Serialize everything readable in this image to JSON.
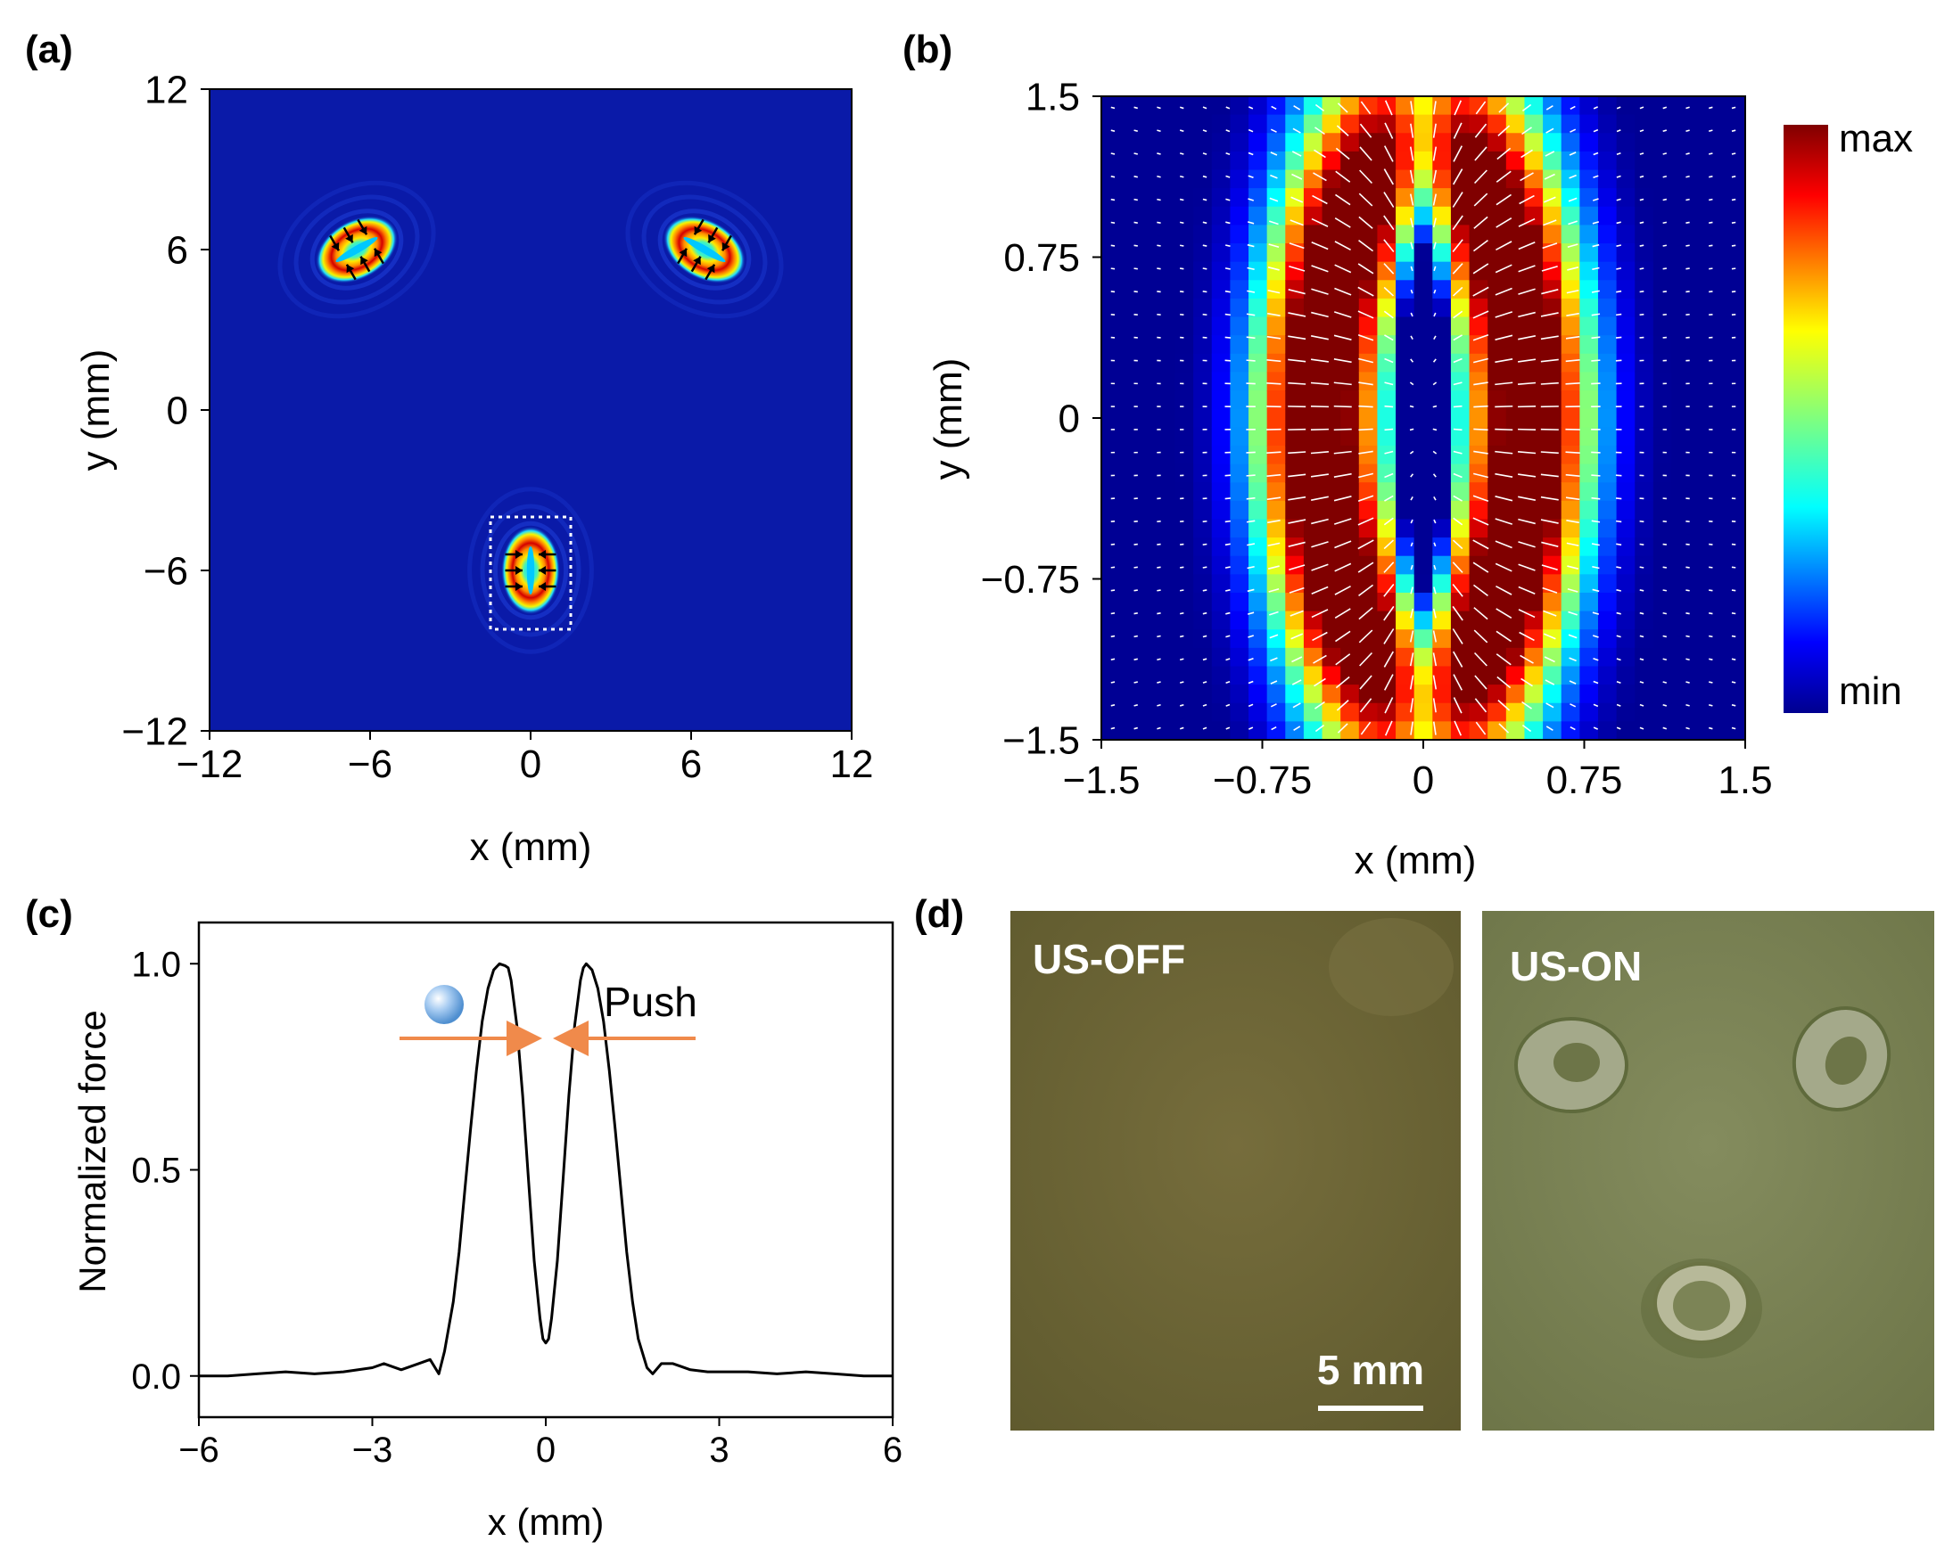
{
  "panel_labels": [
    "(a)",
    "(b)",
    "(c)",
    "(d)"
  ],
  "colors": {
    "jet_low": "#00008f",
    "field_bg": "#0a1aa8",
    "arrow_dark": "#000000",
    "arrow_light": "#ffffff",
    "push_arrow": "#f08a4b",
    "photo_off": "#6e6636",
    "photo_on": "#7c8456"
  },
  "chart_data": [
    {
      "id": "a",
      "type": "heatmap",
      "title": "",
      "xlabel": "x (mm)",
      "ylabel": "y (mm)",
      "xlim": [
        -12,
        12
      ],
      "ylim": [
        -12,
        12
      ],
      "xticks": [
        -12,
        -6,
        0,
        6,
        12
      ],
      "yticks": [
        -12,
        -6,
        0,
        6,
        12
      ],
      "xtick_labels": [
        "−12",
        "−6",
        "0",
        "6",
        "12"
      ],
      "ytick_labels": [
        "−12",
        "−6",
        "0",
        "6",
        "12"
      ],
      "traps": [
        {
          "x": -6.5,
          "y": 6.0,
          "angle_deg": -30
        },
        {
          "x": 6.5,
          "y": 6.0,
          "angle_deg": 30
        },
        {
          "x": 0.0,
          "y": -6.0,
          "angle_deg": 90
        }
      ],
      "inset_box": {
        "x": [
          -1.5,
          1.5
        ],
        "y": [
          -8.2,
          -4.0
        ]
      }
    },
    {
      "id": "b",
      "type": "heatmap",
      "title": "",
      "xlabel": "x (mm)",
      "ylabel": "y (mm)",
      "xlim": [
        -1.5,
        1.5
      ],
      "ylim": [
        -1.5,
        1.5
      ],
      "xticks": [
        -1.5,
        -0.75,
        0,
        0.75,
        1.5
      ],
      "yticks": [
        -1.5,
        -0.75,
        0,
        0.75,
        1.5
      ],
      "xtick_labels": [
        "−1.5",
        "−0.75",
        "0",
        "0.75",
        "1.5"
      ],
      "ytick_labels": [
        "−1.5",
        "−0.75",
        "0",
        "0.75",
        "1.5"
      ],
      "colorbar": {
        "max_label": "max",
        "min_label": "min"
      },
      "grid_cells": 35
    },
    {
      "id": "c",
      "type": "line",
      "title": "",
      "xlabel": "x (mm)",
      "ylabel": "Normalized force",
      "xlim": [
        -6,
        6
      ],
      "ylim": [
        -0.1,
        1.1
      ],
      "xticks": [
        -6,
        -3,
        0,
        3,
        6
      ],
      "yticks": [
        0.0,
        0.5,
        1.0
      ],
      "xtick_labels": [
        "−6",
        "−3",
        "0",
        "3",
        "6"
      ],
      "ytick_labels": [
        "0.0",
        "0.5",
        "1.0"
      ],
      "annotation": "Push",
      "series": [
        {
          "name": "Normalized force",
          "x": [
            -6.0,
            -5.5,
            -5.0,
            -4.5,
            -4.0,
            -3.5,
            -3.0,
            -2.8,
            -2.5,
            -2.2,
            -2.0,
            -1.85,
            -1.75,
            -1.6,
            -1.5,
            -1.4,
            -1.3,
            -1.2,
            -1.1,
            -1.0,
            -0.9,
            -0.8,
            -0.7,
            -0.65,
            -0.6,
            -0.5,
            -0.4,
            -0.3,
            -0.2,
            -0.1,
            -0.05,
            0.0,
            0.05,
            0.1,
            0.2,
            0.3,
            0.4,
            0.5,
            0.6,
            0.65,
            0.7,
            0.8,
            0.9,
            1.0,
            1.1,
            1.2,
            1.3,
            1.4,
            1.5,
            1.6,
            1.75,
            1.85,
            2.0,
            2.2,
            2.5,
            2.8,
            3.0,
            3.5,
            4.0,
            4.5,
            5.0,
            5.5,
            6.0
          ],
          "values": [
            0.0,
            0.0,
            0.005,
            0.01,
            0.005,
            0.01,
            0.02,
            0.03,
            0.015,
            0.03,
            0.04,
            0.005,
            0.06,
            0.18,
            0.3,
            0.45,
            0.6,
            0.74,
            0.86,
            0.94,
            0.985,
            1.0,
            0.995,
            0.99,
            0.96,
            0.85,
            0.68,
            0.48,
            0.28,
            0.14,
            0.09,
            0.08,
            0.09,
            0.14,
            0.28,
            0.48,
            0.68,
            0.85,
            0.96,
            0.99,
            1.0,
            0.985,
            0.94,
            0.86,
            0.74,
            0.6,
            0.45,
            0.3,
            0.18,
            0.09,
            0.02,
            0.005,
            0.03,
            0.03,
            0.015,
            0.01,
            0.01,
            0.01,
            0.005,
            0.01,
            0.005,
            0.0,
            0.0
          ]
        }
      ]
    }
  ],
  "photos": {
    "off_label": "US-OFF",
    "on_label": "US-ON",
    "scale_bar": "5 mm"
  }
}
